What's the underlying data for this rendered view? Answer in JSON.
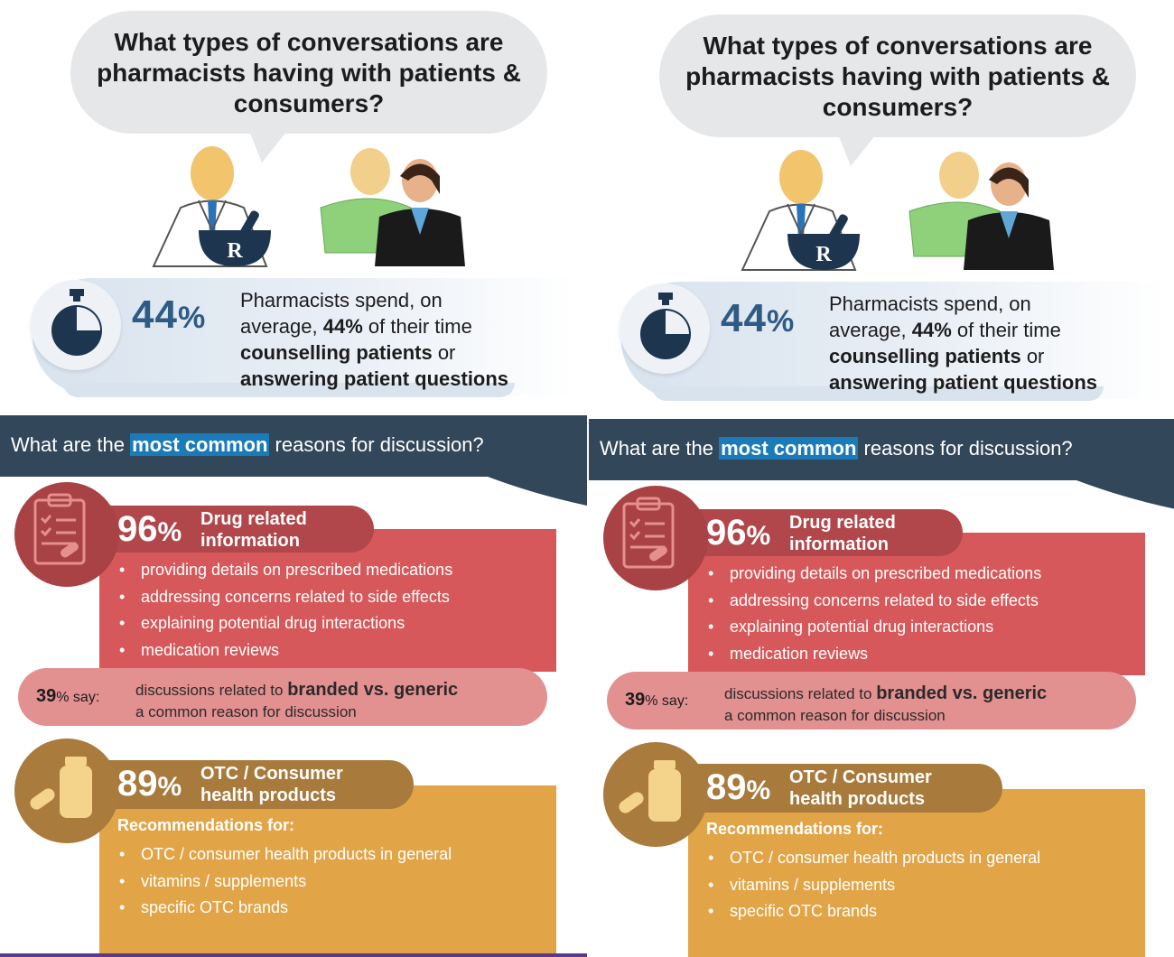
{
  "question": "What types of conversations are pharmacists having with patients & consumers?",
  "stat": {
    "percent": "44",
    "percent_sign": "%",
    "line1": "Pharmacists spend, on",
    "line2_pre": "average, ",
    "line2_bold": "44%",
    "line2_post": " of their time",
    "line3_bold": "counselling patients",
    "line3_post": " or",
    "line4_bold": "answering patient questions"
  },
  "reasons": {
    "pre": "What are the ",
    "highlight": "most common",
    "post": " reasons for discussion?"
  },
  "drug": {
    "percent": "96",
    "percent_sign": "%",
    "label_line1": "Drug related",
    "label_line2": "information",
    "items": [
      "providing details on prescribed medications",
      "addressing concerns related to side effects",
      "explaining potential drug interactions",
      "medication reviews"
    ]
  },
  "generic": {
    "percent": "39",
    "say": "% say:",
    "line1_pre": "discussions related to ",
    "line1_bold": "branded vs. generic",
    "line2": "a common reason for discussion"
  },
  "otc": {
    "percent": "89",
    "percent_sign": "%",
    "label_line1": "OTC / Consumer",
    "label_line2": "health products",
    "reco_title": "Recommendations for:",
    "items": [
      "OTC / consumer health products in general",
      "vitamins / supplements",
      "specific OTC brands"
    ]
  },
  "icons": {
    "pharmacist": "pharmacist-icon",
    "rx": "mortar-rx-icon",
    "patient_man": "patient-man-icon",
    "patient_woman": "patient-woman-icon",
    "timer": "stopwatch-icon",
    "clipboard": "clipboard-icon",
    "bottle": "pill-bottle-icon",
    "capsule": "capsule-icon"
  },
  "colors": {
    "navy": "#324759",
    "highlight": "#1a7bb8",
    "red": "#d7585a",
    "red_dark": "#b1474a",
    "pink": "#e39090",
    "orange": "#e1a548",
    "orange_dark": "#a87a3c",
    "stat_blue": "#2f5a84"
  }
}
